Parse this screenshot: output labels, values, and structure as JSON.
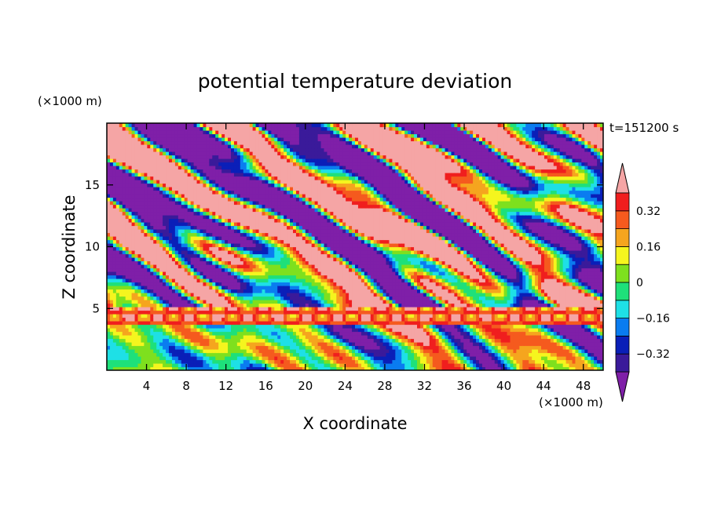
{
  "chart_data": {
    "type": "heatmap",
    "title": "potential temperature deviation",
    "xlabel": "X coordinate",
    "ylabel": "Z coordinate",
    "x_unit": "(×1000 m)",
    "y_unit": "(×1000 m)",
    "time_label": "t=151200 s",
    "xlim": [
      0,
      50
    ],
    "ylim": [
      0,
      20
    ],
    "x_ticks": [
      4,
      8,
      12,
      16,
      20,
      24,
      28,
      32,
      36,
      40,
      44,
      48
    ],
    "x_tick_labels": [
      "4",
      "8",
      "12",
      "16",
      "20",
      "24",
      "28",
      "32",
      "36",
      "40",
      "44",
      "48"
    ],
    "y_ticks": [
      5,
      10,
      15
    ],
    "y_tick_labels": [
      "5",
      "10",
      "15"
    ],
    "colorbar": {
      "levels": [
        -0.4,
        -0.32,
        -0.24,
        -0.16,
        -0.08,
        0,
        0.08,
        0.16,
        0.24,
        0.32,
        0.4
      ],
      "tick_values": [
        0.32,
        0.16,
        0,
        -0.16,
        -0.32
      ],
      "tick_labels": [
        "0.32",
        "0.16",
        "0",
        "−0.16",
        "−0.32"
      ],
      "colors": [
        "#7f1fa8",
        "#3a1a9a",
        "#0a1fb8",
        "#0a7cf0",
        "#1ee0e6",
        "#1ee07a",
        "#7ee01e",
        "#f5f51e",
        "#f5a51e",
        "#f55a1e",
        "#f01e1e",
        "#f5a5a5"
      ],
      "extend": "both"
    }
  }
}
